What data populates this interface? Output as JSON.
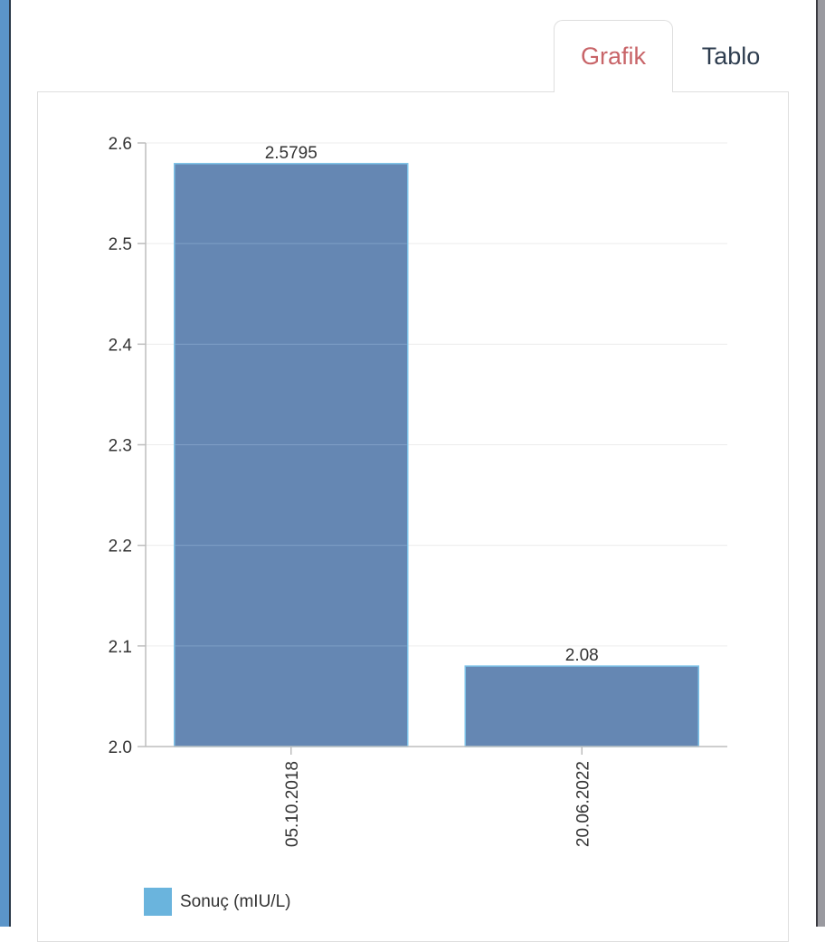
{
  "tabs": [
    {
      "label": "Grafik",
      "active": true
    },
    {
      "label": "Tablo",
      "active": false
    }
  ],
  "colors": {
    "bar_fill": "#6587b3",
    "bar_stroke": "#7ec3e8",
    "legend_swatch": "#6ab4dd",
    "active_tab": "#c86468",
    "inactive_tab": "#2e3d4f"
  },
  "chart_data": {
    "type": "bar",
    "categories": [
      "05.10.2018",
      "20.06.2022"
    ],
    "series": [
      {
        "name": "Sonuç (mIU/L)",
        "values": [
          2.5795,
          2.08
        ],
        "labels": [
          "2.5795",
          "2.08"
        ]
      }
    ],
    "yticks": [
      "2.0",
      "2.1",
      "2.2",
      "2.3",
      "2.4",
      "2.5",
      "2.6"
    ],
    "ylim": [
      2.0,
      2.6
    ],
    "grid": true,
    "legend": "bottom-left",
    "xlabel_rotation": "vertical"
  }
}
